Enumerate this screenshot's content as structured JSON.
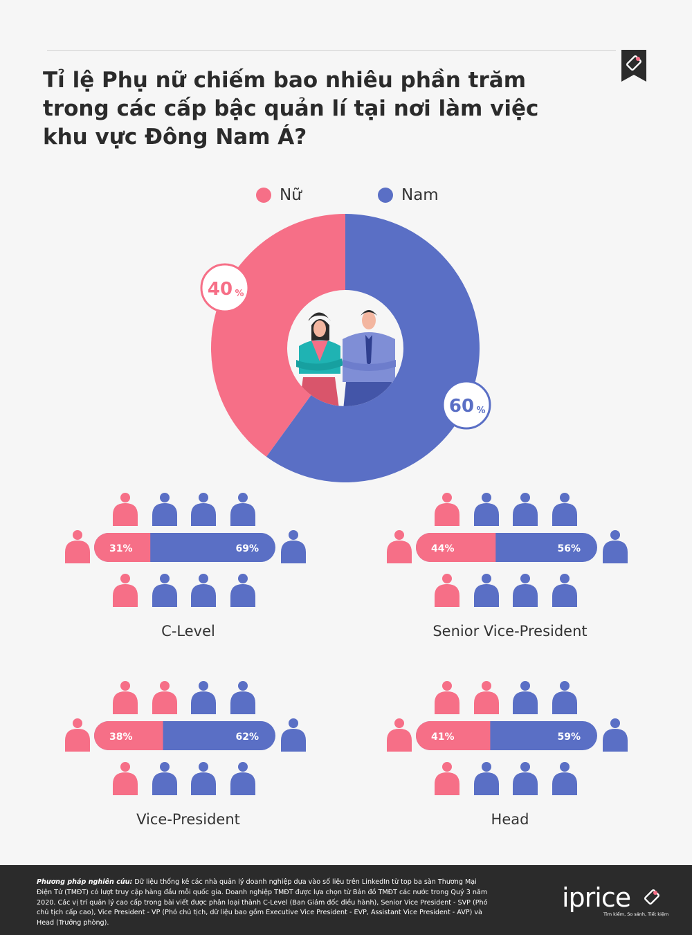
{
  "title": "Tỉ lệ Phụ nữ chiếm bao nhiêu phần trăm trong các cấp bậc quản lí tại nơi làm việc khu vực Đông Nam Á?",
  "colors": {
    "female": "#f66f87",
    "male": "#5a6fc5",
    "text": "#333333",
    "footer_bg": "#2b2b2b"
  },
  "icons": [
    "bookmark-tag-icon",
    "woman-illustration",
    "man-illustration",
    "person-icon",
    "iprice-tag-icon"
  ],
  "chart_data": [
    {
      "type": "pie",
      "labels": [
        "Nữ",
        "Nam"
      ],
      "values": [
        40,
        60
      ],
      "unit": "%",
      "legend": "top"
    },
    {
      "type": "bar",
      "orientation": "horizontal",
      "stacked": true,
      "series_names": [
        "Nữ",
        "Nam"
      ],
      "unit": "%",
      "categories": [
        {
          "label": "C-Level",
          "female": 31,
          "male": 69
        },
        {
          "label": "Senior Vice-President",
          "female": 44,
          "male": 56
        },
        {
          "label": "Vice-President",
          "female": 38,
          "male": 62
        },
        {
          "label": "Head",
          "female": 41,
          "male": 59
        }
      ],
      "icon_grid": [
        {
          "top": [
            "female",
            "male",
            "male",
            "male"
          ],
          "left": "female",
          "right": "male",
          "bottom": [
            "female",
            "male",
            "male",
            "male"
          ]
        },
        {
          "top": [
            "female",
            "male",
            "male",
            "male"
          ],
          "left": "female",
          "right": "male",
          "bottom": [
            "female",
            "male",
            "male",
            "male"
          ]
        },
        {
          "top": [
            "female",
            "female",
            "male",
            "male"
          ],
          "left": "female",
          "right": "male",
          "bottom": [
            "female",
            "male",
            "male",
            "male"
          ]
        },
        {
          "top": [
            "female",
            "female",
            "male",
            "male"
          ],
          "left": "female",
          "right": "male",
          "bottom": [
            "female",
            "male",
            "male",
            "male"
          ]
        }
      ]
    }
  ],
  "footer": {
    "method_label": "Phương pháp nghiên cứu:",
    "method_text": " Dữ liệu thống kê các nhà quản lý doanh nghiệp dựa vào số liệu trên LinkedIn từ top ba sàn Thương Mại Điện Tử (TMĐT) có lượt truy cập hàng đầu mỗi quốc gia. Doanh nghiệp TMĐT được lựa chọn từ Bản đồ TMĐT các nước trong Quý 3 năm 2020. Các vị trí quản lý cao cấp trong bài viết được phân loại thành C-Level (Ban Giám đốc điều hành), Senior Vice President - SVP (Phó chủ tịch cấp cao), Vice President - VP (Phó chủ tịch, dữ liệu bao gồm Executive Vice President - EVP, Assistant Vice President - AVP) và Head (Trưởng phòng).",
    "logo_word": "iprice",
    "logo_tagline": "Tìm kiếm, So sánh, Tiết kiệm"
  }
}
